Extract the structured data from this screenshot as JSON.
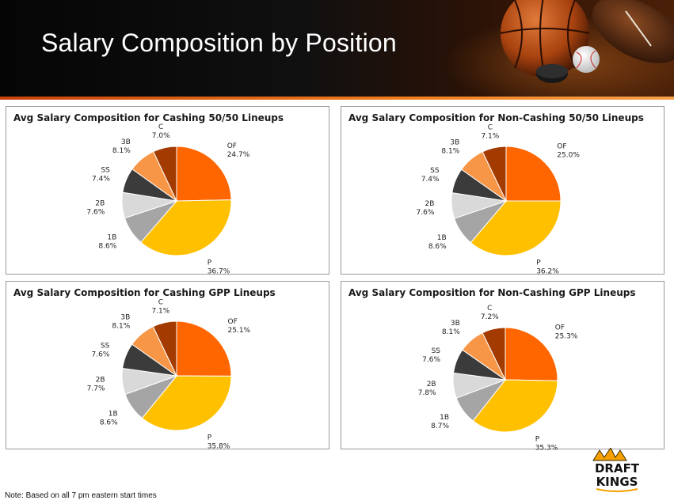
{
  "header": {
    "title": "Salary Composition by Position"
  },
  "footnote": "Note: Based on all 7 pm eastern start times",
  "logo": {
    "text_top": "DRAFT",
    "text_bottom": "KINGS"
  },
  "colors": {
    "OF": "#ff6600",
    "P": "#ffc000",
    "1B": "#a5a5a5",
    "2B": "#d9d9d9",
    "SS": "#3b3b3b",
    "3B": "#f79646",
    "C": "#a33b00"
  },
  "chart_data": [
    {
      "type": "pie",
      "title": "Avg Salary Composition for Cashing 50/50 Lineups",
      "categories": [
        "OF",
        "P",
        "1B",
        "2B",
        "SS",
        "3B",
        "C"
      ],
      "values": [
        24.7,
        36.7,
        8.6,
        7.6,
        7.4,
        8.1,
        7.0
      ],
      "labels": [
        "24.7%",
        "36.7%",
        "8.6%",
        "7.6%",
        "7.4%",
        "8.1%",
        "7.0%"
      ]
    },
    {
      "type": "pie",
      "title": "Avg Salary Composition for Non-Cashing 50/50 Lineups",
      "categories": [
        "OF",
        "P",
        "1B",
        "2B",
        "SS",
        "3B",
        "C"
      ],
      "values": [
        25.0,
        36.2,
        8.6,
        7.6,
        7.4,
        8.1,
        7.1
      ],
      "labels": [
        "25.0%",
        "36.2%",
        "8.6%",
        "7.6%",
        "7.4%",
        "8.1%",
        "7.1%"
      ]
    },
    {
      "type": "pie",
      "title": "Avg Salary Composition for Cashing GPP Lineups",
      "categories": [
        "OF",
        "P",
        "1B",
        "2B",
        "SS",
        "3B",
        "C"
      ],
      "values": [
        25.1,
        35.8,
        8.6,
        7.7,
        7.6,
        8.1,
        7.1
      ],
      "labels": [
        "25.1%",
        "35.8%",
        "8.6%",
        "7.7%",
        "7.6%",
        "8.1%",
        "7.1%"
      ]
    },
    {
      "type": "pie",
      "title": "Avg Salary Composition for Non-Cashing GPP Lineups",
      "categories": [
        "OF",
        "P",
        "1B",
        "2B",
        "SS",
        "3B",
        "C"
      ],
      "values": [
        25.3,
        35.3,
        8.7,
        7.8,
        7.6,
        8.1,
        7.2
      ],
      "labels": [
        "25.3%",
        "35.3%",
        "8.7%",
        "7.8%",
        "7.6%",
        "8.1%",
        "7.2%"
      ]
    }
  ]
}
